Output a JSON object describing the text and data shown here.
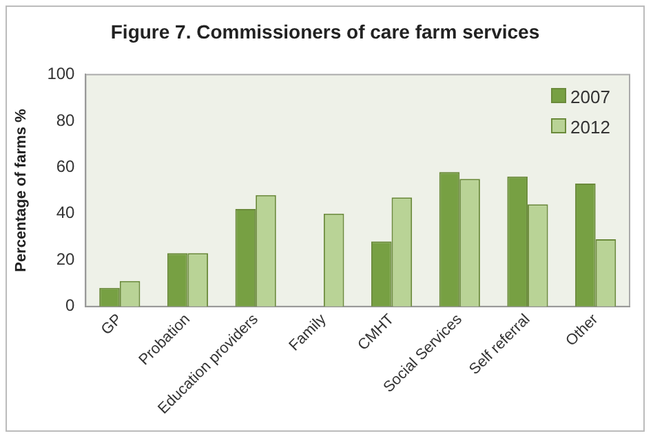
{
  "chart_data": {
    "type": "bar",
    "title": "Figure 7. Commissioners of care farm services",
    "ylabel": "Percentage of farms %",
    "categories": [
      "GP",
      "Probation",
      "Education providers",
      "Family",
      "CMHT",
      "Social Services",
      "Self referral",
      "Other"
    ],
    "series": [
      {
        "name": "2007",
        "color": "#77a043",
        "values": [
          8,
          23,
          42,
          null,
          28,
          58,
          56,
          53
        ]
      },
      {
        "name": "2012",
        "color": "#b9d396",
        "values": [
          11,
          23,
          48,
          40,
          47,
          55,
          44,
          29
        ]
      }
    ],
    "ylim": [
      0,
      100
    ],
    "yticks": [
      0,
      20,
      40,
      60,
      80,
      100
    ],
    "grid": false,
    "legend": "top right"
  }
}
